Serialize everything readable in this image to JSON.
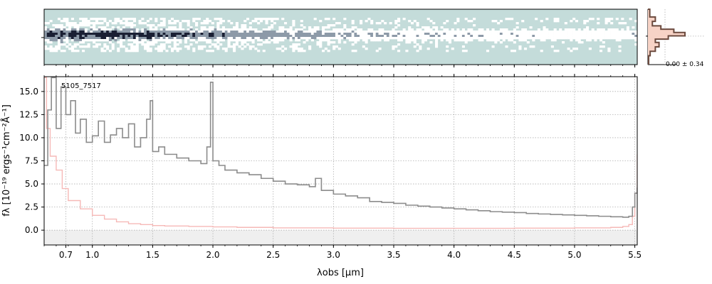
{
  "chart_data": [
    {
      "type": "heatmap",
      "panel": "2d-spectrum",
      "colormap": [
        "#c4dcda",
        "#ffffff",
        "#8d9aa8",
        "#1a1f33"
      ],
      "trace_row_fraction": 0.46
    },
    {
      "type": "line",
      "panel": "spatial-profile",
      "annotation": "0.00 ± 0.34",
      "profile": [
        {
          "y": 0.0,
          "v": 0.02
        },
        {
          "y": 0.14,
          "v": 0.05
        },
        {
          "y": 0.22,
          "v": 0.2
        },
        {
          "y": 0.3,
          "v": 0.12
        },
        {
          "y": 0.36,
          "v": 0.35
        },
        {
          "y": 0.42,
          "v": 0.7
        },
        {
          "y": 0.48,
          "v": 1.0
        },
        {
          "y": 0.54,
          "v": 0.55
        },
        {
          "y": 0.6,
          "v": 0.2
        },
        {
          "y": 0.68,
          "v": 0.3
        },
        {
          "y": 0.76,
          "v": 0.2
        },
        {
          "y": 0.84,
          "v": 0.06
        },
        {
          "y": 1.0,
          "v": 0.02
        }
      ],
      "colors": {
        "line": "#6b4a3e",
        "fill": "#f7d3c6"
      }
    },
    {
      "type": "line",
      "panel": "1d-spectrum",
      "label": "5105_7517",
      "xlabel": "λobs [μm]",
      "ylabel": "fλ [10⁻¹⁹ ergs⁻¹cm⁻²Å⁻¹]",
      "x_scale": "nonlinear",
      "xlim": [
        0.6,
        5.52
      ],
      "ylim": [
        -1.6,
        16.6
      ],
      "xticks": [
        "0.7",
        "1.0",
        "1.5",
        "2.0",
        "2.5",
        "3.0",
        "3.5",
        "4.0",
        "4.5",
        "5.0",
        "5.5"
      ],
      "xtick_values": [
        0.7,
        1.0,
        1.5,
        2.0,
        2.5,
        3.0,
        3.5,
        4.0,
        4.5,
        5.0,
        5.5
      ],
      "xtick_positions": [
        0.78,
        1.0,
        1.5,
        2.0,
        2.5,
        3.0,
        3.5,
        4.0,
        4.5,
        5.0,
        5.5
      ],
      "yticks": [
        "0.0",
        "2.5",
        "5.0",
        "7.5",
        "10.0",
        "12.5",
        "15.0"
      ],
      "ytick_values": [
        0.0,
        2.5,
        5.0,
        7.5,
        10.0,
        12.5,
        15.0
      ],
      "grid": true,
      "series": [
        {
          "role": "flux",
          "color": "#8c8c8c",
          "x": [
            0.6,
            0.63,
            0.66,
            0.7,
            0.74,
            0.78,
            0.82,
            0.86,
            0.9,
            0.95,
            1.0,
            1.05,
            1.1,
            1.15,
            1.2,
            1.25,
            1.3,
            1.35,
            1.4,
            1.45,
            1.48,
            1.5,
            1.55,
            1.6,
            1.7,
            1.8,
            1.9,
            1.95,
            1.98,
            2.0,
            2.05,
            2.1,
            2.2,
            2.3,
            2.4,
            2.5,
            2.6,
            2.7,
            2.8,
            2.85,
            2.9,
            3.0,
            3.1,
            3.2,
            3.3,
            3.4,
            3.5,
            3.6,
            3.7,
            3.8,
            3.9,
            4.0,
            4.1,
            4.2,
            4.3,
            4.4,
            4.5,
            4.6,
            4.7,
            4.8,
            4.9,
            5.0,
            5.1,
            5.2,
            5.3,
            5.4,
            5.45,
            5.48,
            5.5,
            5.52
          ],
          "y": [
            7.0,
            13.0,
            16.5,
            11.0,
            15.5,
            12.5,
            14.0,
            10.5,
            12.0,
            9.5,
            10.2,
            11.8,
            9.5,
            10.3,
            11.0,
            10.0,
            11.5,
            9.0,
            10.0,
            12.0,
            14.0,
            8.5,
            9.0,
            8.2,
            7.8,
            7.5,
            7.2,
            9.0,
            16.0,
            7.5,
            7.0,
            6.5,
            6.2,
            6.0,
            5.6,
            5.3,
            5.0,
            4.9,
            4.7,
            5.6,
            4.3,
            3.9,
            3.7,
            3.5,
            3.1,
            3.0,
            2.9,
            2.7,
            2.6,
            2.5,
            2.4,
            2.3,
            2.2,
            2.1,
            2.0,
            1.95,
            1.9,
            1.8,
            1.75,
            1.7,
            1.65,
            1.6,
            1.55,
            1.5,
            1.45,
            1.4,
            1.5,
            2.5,
            4.0,
            4.6
          ]
        },
        {
          "role": "error",
          "color": "#f6b9b7",
          "x": [
            0.6,
            0.62,
            0.65,
            0.7,
            0.75,
            0.8,
            0.9,
            1.0,
            1.1,
            1.2,
            1.3,
            1.4,
            1.5,
            1.6,
            1.8,
            2.0,
            2.2,
            2.5,
            3.0,
            3.5,
            4.0,
            4.5,
            5.0,
            5.3,
            5.4,
            5.45,
            5.48,
            5.5,
            5.52
          ],
          "y": [
            16.5,
            11.0,
            8.0,
            6.5,
            4.5,
            3.2,
            2.3,
            1.6,
            1.2,
            0.9,
            0.7,
            0.6,
            0.5,
            0.45,
            0.4,
            0.35,
            0.3,
            0.25,
            0.22,
            0.2,
            0.2,
            0.22,
            0.25,
            0.3,
            0.4,
            0.6,
            1.5,
            4.0,
            8.2
          ]
        }
      ],
      "zero_band": [
        -1.6,
        0.0
      ]
    }
  ]
}
